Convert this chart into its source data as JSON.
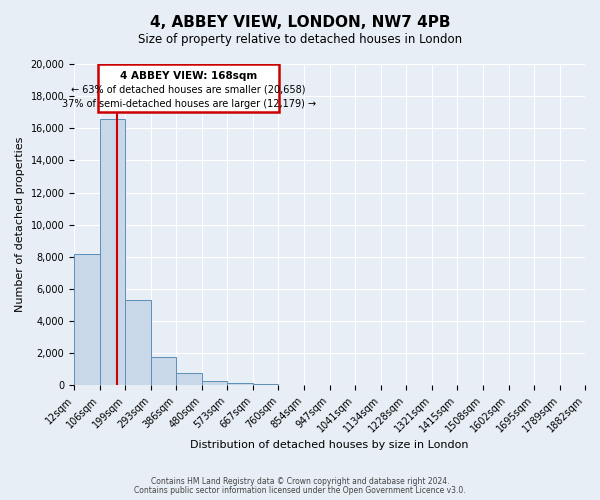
{
  "title": "4, ABBEY VIEW, LONDON, NW7 4PB",
  "subtitle": "Size of property relative to detached houses in London",
  "xlabel": "Distribution of detached houses by size in London",
  "ylabel": "Number of detached properties",
  "bar_values": [
    8200,
    16600,
    5300,
    1800,
    750,
    300,
    150,
    100,
    60,
    40,
    0,
    0,
    0,
    0,
    0,
    0,
    0,
    0,
    0,
    0
  ],
  "x_labels": [
    "12sqm",
    "106sqm",
    "199sqm",
    "293sqm",
    "386sqm",
    "480sqm",
    "573sqm",
    "667sqm",
    "760sqm",
    "854sqm",
    "947sqm",
    "1041sqm",
    "1134sqm",
    "1228sqm",
    "1321sqm",
    "1415sqm",
    "1508sqm",
    "1602sqm",
    "1695sqm",
    "1789sqm",
    "1882sqm"
  ],
  "bar_color": "#c8d8e8",
  "bar_edge_color": "#5b8fb9",
  "property_line_x": 168,
  "x_min": 12,
  "x_max": 1882,
  "bin_edges": [
    12,
    106,
    199,
    293,
    386,
    480,
    573,
    667,
    760,
    854,
    947,
    1041,
    1134,
    1228,
    1321,
    1415,
    1508,
    1602,
    1695,
    1789,
    1882
  ],
  "annotation_title": "4 ABBEY VIEW: 168sqm",
  "annotation_line1": "← 63% of detached houses are smaller (20,658)",
  "annotation_line2": "37% of semi-detached houses are larger (12,179) →",
  "annotation_border_color": "#cc0000",
  "red_line_color": "#cc0000",
  "ylim": [
    0,
    20000
  ],
  "yticks": [
    0,
    2000,
    4000,
    6000,
    8000,
    10000,
    12000,
    14000,
    16000,
    18000,
    20000
  ],
  "background_color": "#e8eef5",
  "footer1": "Contains HM Land Registry data © Crown copyright and database right 2024.",
  "footer2": "Contains public sector information licensed under the Open Government Licence v3.0."
}
